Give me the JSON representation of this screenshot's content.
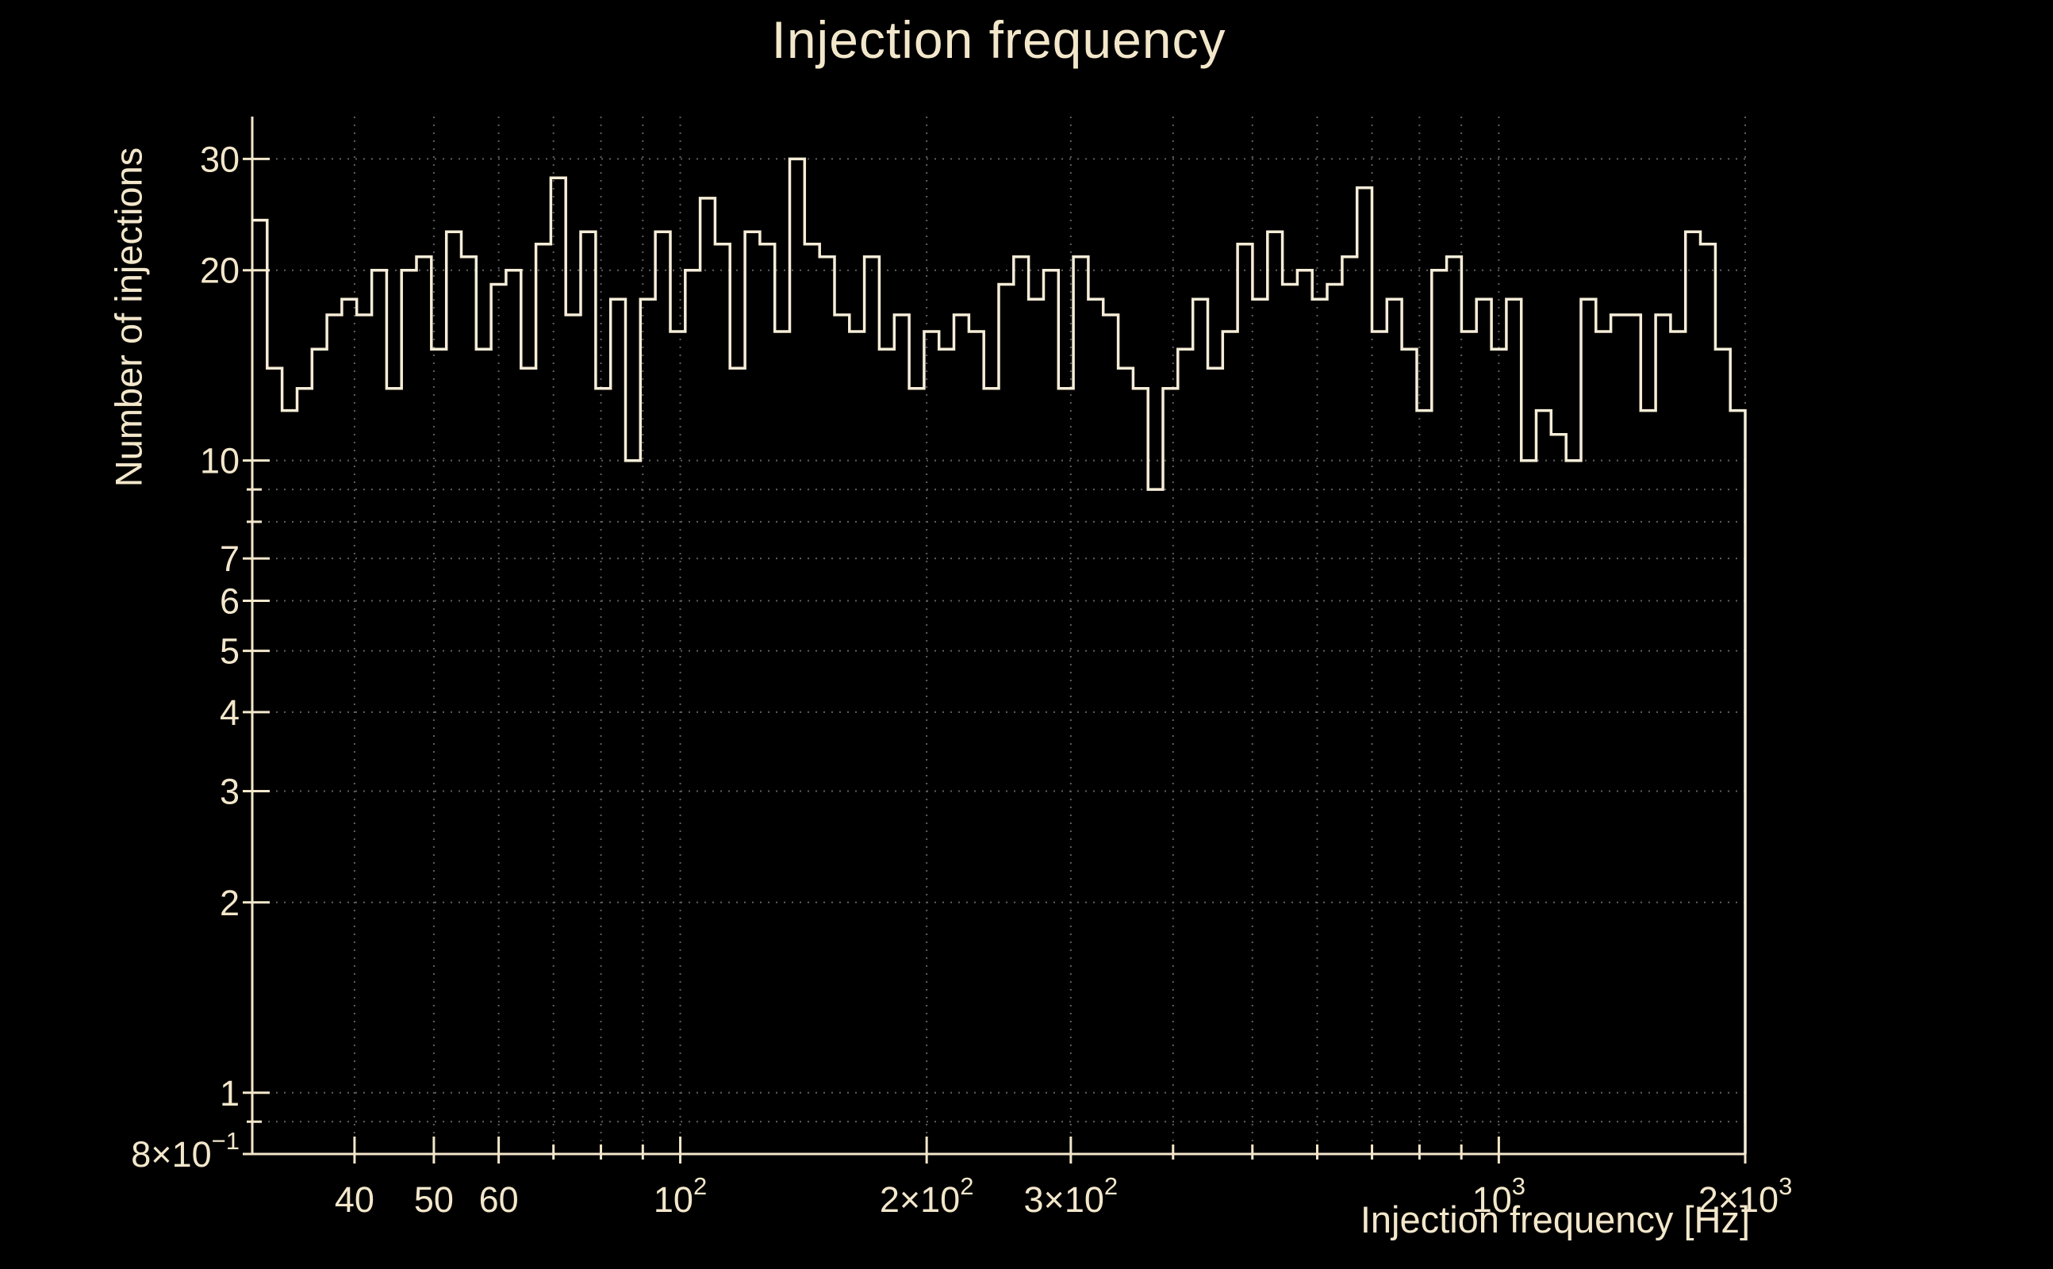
{
  "chart_data": {
    "type": "bar",
    "subtype": "histogram-step-outline",
    "title": "Injection frequency",
    "xlabel": "Injection frequency [Hz]",
    "ylabel": "Number of injections",
    "xscale": "log",
    "yscale": "log",
    "xlim": [
      30,
      2000
    ],
    "ylim": [
      0.8,
      35
    ],
    "grid": "dotted",
    "legend": "none",
    "bin_edges": "100 log-spaced bins from 30 Hz to 2000 Hz",
    "values": [
      24,
      14,
      12,
      13,
      15,
      17,
      18,
      17,
      20,
      13,
      20,
      21,
      15,
      23,
      21,
      15,
      19,
      20,
      14,
      22,
      28,
      17,
      23,
      13,
      18,
      10,
      18,
      23,
      16,
      20,
      26,
      22,
      14,
      23,
      22,
      16,
      30,
      22,
      21,
      17,
      16,
      21,
      15,
      17,
      13,
      16,
      15,
      17,
      16,
      13,
      19,
      21,
      18,
      20,
      13,
      21,
      18,
      17,
      14,
      13,
      9,
      13,
      15,
      18,
      14,
      16,
      22,
      18,
      23,
      19,
      20,
      18,
      19,
      21,
      27,
      16,
      18,
      15,
      12,
      20,
      21,
      16,
      18,
      15,
      18,
      10,
      12,
      11,
      10,
      18,
      16,
      17,
      17,
      12,
      17,
      16,
      23,
      22,
      15,
      12
    ],
    "x_major_ticks": [
      {
        "v": 40,
        "t": "40",
        "sup": ""
      },
      {
        "v": 50,
        "t": "50",
        "sup": ""
      },
      {
        "v": 60,
        "t": "60",
        "sup": ""
      },
      {
        "v": 100,
        "t": "10",
        "sup": "2"
      },
      {
        "v": 200,
        "t": "2×10",
        "sup": "2"
      },
      {
        "v": 300,
        "t": "3×10",
        "sup": "2"
      },
      {
        "v": 1000,
        "t": "10",
        "sup": "3"
      },
      {
        "v": 2000,
        "t": "2×10",
        "sup": "3"
      }
    ],
    "x_minor_ticks": [
      70,
      80,
      90,
      400,
      500,
      600,
      700,
      800,
      900
    ],
    "y_major_ticks": [
      {
        "v": 30,
        "t": "30",
        "sup": ""
      },
      {
        "v": 20,
        "t": "20",
        "sup": ""
      },
      {
        "v": 10,
        "t": "10",
        "sup": ""
      },
      {
        "v": 7,
        "t": "7",
        "sup": ""
      },
      {
        "v": 6,
        "t": "6",
        "sup": ""
      },
      {
        "v": 5,
        "t": "5",
        "sup": ""
      },
      {
        "v": 4,
        "t": "4",
        "sup": ""
      },
      {
        "v": 3,
        "t": "3",
        "sup": ""
      },
      {
        "v": 2,
        "t": "2",
        "sup": ""
      },
      {
        "v": 1,
        "t": "1",
        "sup": ""
      },
      {
        "v": 0.8,
        "t": "8×10",
        "sup": "−1"
      }
    ],
    "y_minor_ticks": [
      0.9,
      8,
      9
    ],
    "grid_x": [
      40,
      50,
      60,
      70,
      80,
      90,
      100,
      200,
      300,
      400,
      500,
      600,
      700,
      800,
      900,
      1000,
      2000
    ],
    "grid_y": [
      0.9,
      1,
      2,
      3,
      4,
      5,
      6,
      7,
      8,
      9,
      10,
      20,
      30
    ],
    "colors": {
      "background": "#000000",
      "foreground": "#f3e7cb",
      "grid": "#5f5f5f",
      "line": "#f6edd8"
    }
  }
}
